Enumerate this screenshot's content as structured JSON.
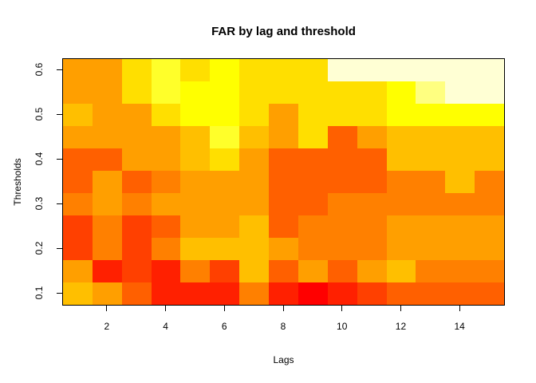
{
  "title": "FAR by lag and threshold",
  "axes": {
    "x_title": "Lags",
    "y_title": "Thresholds"
  },
  "chart_data": {
    "type": "heatmap",
    "title": "FAR by lag and threshold",
    "xlabel": "Lags",
    "ylabel": "Thresholds",
    "x_values_lags": [
      1,
      2,
      3,
      4,
      5,
      6,
      7,
      8,
      9,
      10,
      11,
      12,
      13,
      14,
      15
    ],
    "y_values_thresholds_top_to_bottom": [
      0.6,
      0.55,
      0.5,
      0.45,
      0.4,
      0.35,
      0.3,
      0.25,
      0.2,
      0.15,
      0.1
    ],
    "x_ticks": [
      {
        "label": "2",
        "value": 2
      },
      {
        "label": "4",
        "value": 4
      },
      {
        "label": "6",
        "value": 6
      },
      {
        "label": "8",
        "value": 8
      },
      {
        "label": "10",
        "value": 10
      },
      {
        "label": "12",
        "value": 12
      },
      {
        "label": "14",
        "value": 14
      }
    ],
    "y_ticks": [
      {
        "label": "0.1",
        "value": 0.1
      },
      {
        "label": "0.2",
        "value": 0.2
      },
      {
        "label": "0.3",
        "value": 0.3
      },
      {
        "label": "0.4",
        "value": 0.4
      },
      {
        "label": "0.5",
        "value": 0.5
      },
      {
        "label": "0.6",
        "value": 0.6
      }
    ],
    "x_range_lags": [
      0.5,
      15.5
    ],
    "y_range_thresholds": [
      0.075,
      0.625
    ],
    "grid_on": false,
    "legend": "none",
    "palette_low_to_high": [
      "#FF0000",
      "#FF2000",
      "#FF4000",
      "#FF6000",
      "#FF8000",
      "#FF9F00",
      "#FFBF00",
      "#FFDF00",
      "#FFFF00",
      "#FFFF2A",
      "#FFFF80",
      "#FFFFD4"
    ],
    "cell_palette_index_rows_top_to_bottom": [
      [
        6,
        6,
        8,
        10,
        8,
        9,
        8,
        8,
        8,
        12,
        12,
        12,
        12,
        12,
        12
      ],
      [
        6,
        6,
        8,
        10,
        9,
        9,
        8,
        8,
        8,
        8,
        8,
        9,
        11,
        12,
        12
      ],
      [
        7,
        6,
        6,
        8,
        9,
        9,
        8,
        6,
        8,
        8,
        8,
        9,
        9,
        9,
        9
      ],
      [
        6,
        6,
        6,
        6,
        7,
        10,
        7,
        6,
        8,
        4,
        6,
        7,
        7,
        7,
        7
      ],
      [
        4,
        4,
        6,
        6,
        7,
        8,
        6,
        4,
        4,
        4,
        4,
        7,
        7,
        7,
        7
      ],
      [
        4,
        6,
        4,
        5,
        6,
        6,
        6,
        4,
        4,
        4,
        4,
        5,
        5,
        7,
        5
      ],
      [
        5,
        6,
        5,
        6,
        6,
        6,
        6,
        4,
        4,
        5,
        5,
        5,
        5,
        5,
        5
      ],
      [
        3,
        5,
        3,
        4,
        6,
        6,
        7,
        4,
        5,
        5,
        5,
        6,
        6,
        6,
        6
      ],
      [
        3,
        5,
        3,
        5,
        7,
        7,
        7,
        6,
        5,
        5,
        5,
        6,
        6,
        6,
        6
      ],
      [
        6,
        2,
        3,
        2,
        5,
        3,
        7,
        4,
        6,
        4,
        6,
        7,
        5,
        5,
        5
      ],
      [
        7,
        6,
        4,
        2,
        2,
        2,
        5,
        2,
        1,
        2,
        3,
        4,
        4,
        4,
        4
      ]
    ],
    "frame_color": "#000000",
    "background_color": "#FFFFFF"
  }
}
